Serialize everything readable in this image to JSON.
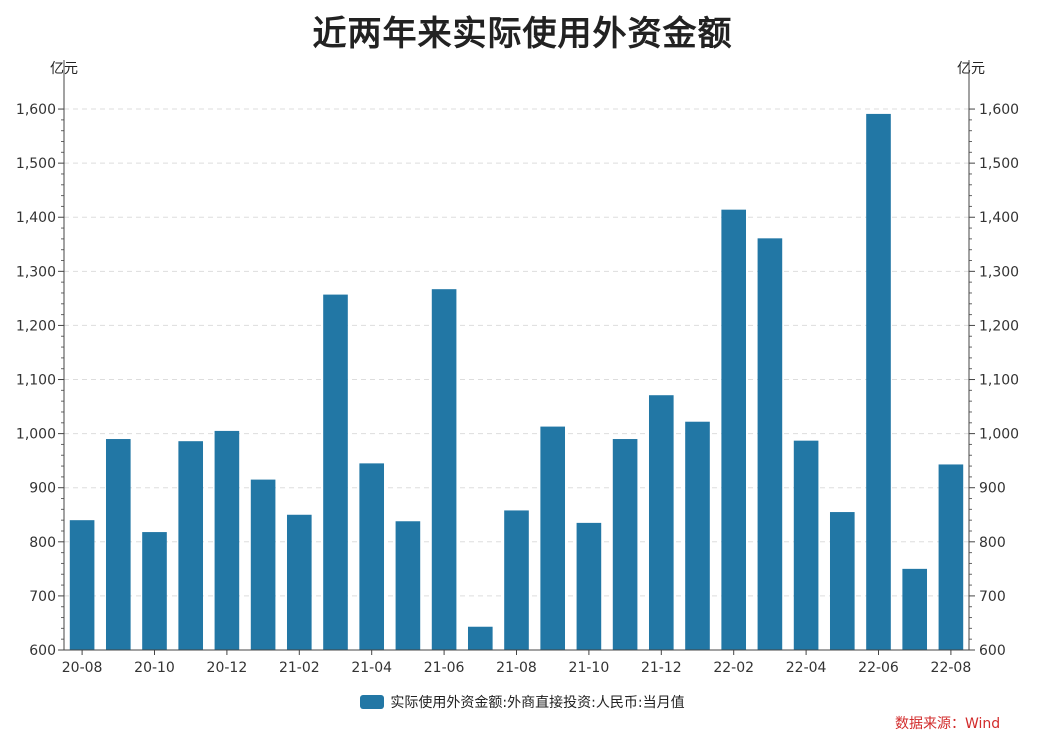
{
  "chart_data": {
    "type": "bar",
    "title": "近两年来实际使用外资金额",
    "y_unit_left": "亿元",
    "y_unit_right": "亿元",
    "ylim": [
      600,
      1650
    ],
    "yticks": [
      600,
      700,
      800,
      900,
      1000,
      1100,
      1200,
      1300,
      1400,
      1500,
      1600
    ],
    "ytick_labels": [
      "600",
      "700",
      "800",
      "900",
      "1,000",
      "1,100",
      "1,200",
      "1,300",
      "1,400",
      "1,500",
      "1,600"
    ],
    "categories": [
      "20-08",
      "20-09",
      "20-10",
      "20-11",
      "20-12",
      "21-01",
      "21-02",
      "21-03",
      "21-04",
      "21-05",
      "21-06",
      "21-07",
      "21-08",
      "21-09",
      "21-10",
      "21-11",
      "21-12",
      "22-01",
      "22-02",
      "22-03",
      "22-04",
      "22-05",
      "22-06",
      "22-07",
      "22-08"
    ],
    "xtick_labels": [
      "20-08",
      "20-10",
      "20-12",
      "21-02",
      "21-04",
      "21-06",
      "21-08",
      "21-10",
      "21-12",
      "22-02",
      "22-04",
      "22-06",
      "22-08"
    ],
    "series": [
      {
        "name": "实际使用外资金额:外商直接投资:人民币:当月值",
        "color": "#2277a5",
        "values": [
          840,
          990,
          818,
          986,
          1005,
          915,
          850,
          1257,
          945,
          838,
          1267,
          643,
          858,
          1013,
          835,
          990,
          1071,
          1022,
          1414,
          1361,
          987,
          855,
          1591,
          750,
          943
        ]
      }
    ],
    "grid": "horizontal-dashed",
    "legend_position": "bottom-center"
  },
  "source_text": "数据来源：Wind",
  "watermark_text": "Wind"
}
